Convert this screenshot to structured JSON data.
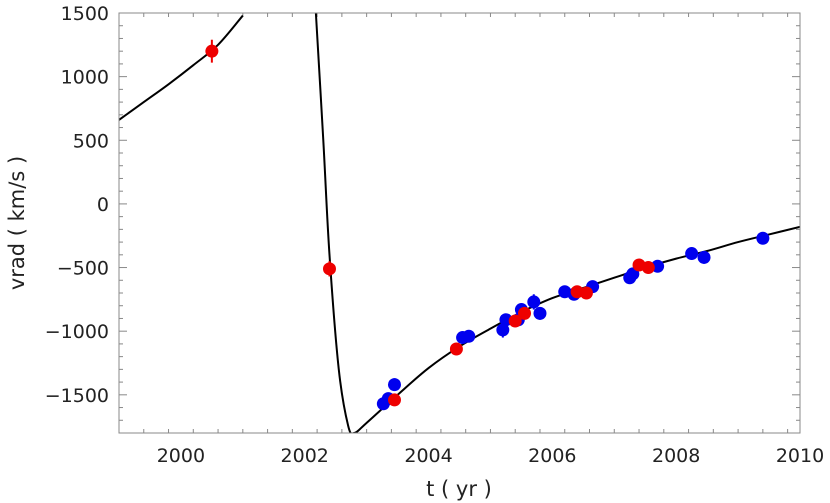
{
  "chart_data": {
    "type": "scatter",
    "title": "",
    "xlabel": "t ( yr )",
    "ylabel": "vrad ( km/s )",
    "xlim": [
      1999,
      2010
    ],
    "ylim": [
      -1800,
      1500
    ],
    "xticks": [
      2000,
      2002,
      2004,
      2006,
      2008,
      2010
    ],
    "xtick_labels": [
      "2000",
      "2002",
      "2004",
      "2006",
      "2008",
      "2010"
    ],
    "yticks": [
      1500,
      1000,
      500,
      0,
      -500,
      -1000,
      -1500
    ],
    "ytick_labels": [
      "1500",
      "1000",
      "500",
      "0",
      "−500",
      "−1000",
      "−1500"
    ],
    "colors": {
      "series_a": "#0000ee",
      "series_b": "#ee0000",
      "fit": "#000000",
      "frame": "#888888"
    },
    "series": [
      {
        "name": "blue",
        "color": "#0000ee",
        "points": [
          [
            2003.27,
            -1570,
            20
          ],
          [
            2003.35,
            -1530,
            20
          ],
          [
            2003.45,
            -1420,
            50
          ],
          [
            2004.55,
            -1050,
            20
          ],
          [
            2004.65,
            -1040,
            20
          ],
          [
            2005.2,
            -990,
            60
          ],
          [
            2005.25,
            -910,
            40
          ],
          [
            2005.45,
            -910,
            40
          ],
          [
            2005.5,
            -830,
            40
          ],
          [
            2005.7,
            -770,
            60
          ],
          [
            2005.8,
            -860,
            50
          ],
          [
            2006.2,
            -690,
            40
          ],
          [
            2006.35,
            -710,
            30
          ],
          [
            2006.65,
            -650,
            40
          ],
          [
            2007.25,
            -580,
            40
          ],
          [
            2007.3,
            -550,
            30
          ],
          [
            2007.7,
            -490,
            30
          ],
          [
            2008.25,
            -390,
            30
          ],
          [
            2008.45,
            -420,
            50
          ],
          [
            2009.4,
            -270,
            30
          ]
        ]
      },
      {
        "name": "red",
        "color": "#ee0000",
        "points": [
          [
            2000.5,
            1200,
            90
          ],
          [
            2002.4,
            -510,
            60
          ],
          [
            2003.45,
            -1540,
            20
          ],
          [
            2004.45,
            -1140,
            20
          ],
          [
            2005.4,
            -920,
            30
          ],
          [
            2005.55,
            -860,
            30
          ],
          [
            2006.4,
            -690,
            30
          ],
          [
            2006.55,
            -700,
            30
          ],
          [
            2007.4,
            -480,
            30
          ],
          [
            2007.55,
            -500,
            30
          ]
        ]
      }
    ],
    "fit_curve": {
      "name": "orbit fit",
      "color": "#000000",
      "branch_left": [
        [
          1999.0,
          660
        ],
        [
          1999.4,
          800
        ],
        [
          1999.8,
          940
        ],
        [
          2000.2,
          1090
        ],
        [
          2000.6,
          1250
        ],
        [
          2001.0,
          1480
        ]
      ],
      "branch_right": [
        [
          2002.18,
          1500
        ],
        [
          2002.3,
          500
        ],
        [
          2002.4,
          -400
        ],
        [
          2002.55,
          -1300
        ],
        [
          2002.7,
          -1740
        ],
        [
          2002.8,
          -1800
        ],
        [
          2003.0,
          -1720
        ],
        [
          2003.5,
          -1500
        ],
        [
          2004.0,
          -1290
        ],
        [
          2004.5,
          -1120
        ],
        [
          2005.0,
          -980
        ],
        [
          2005.5,
          -850
        ],
        [
          2006.0,
          -740
        ],
        [
          2006.5,
          -660
        ],
        [
          2007.0,
          -580
        ],
        [
          2007.5,
          -500
        ],
        [
          2008.0,
          -430
        ],
        [
          2008.5,
          -370
        ],
        [
          2009.0,
          -300
        ],
        [
          2009.5,
          -240
        ],
        [
          2010.0,
          -180
        ]
      ]
    }
  }
}
